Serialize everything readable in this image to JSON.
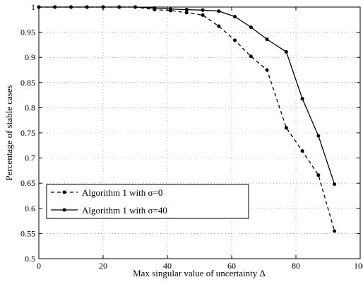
{
  "chart_data": {
    "type": "line",
    "xlabel": "Max singular value of uncertainty Δ",
    "ylabel": "Percentage of stable cases",
    "xlim": [
      0,
      100
    ],
    "ylim": [
      0.5,
      1.0
    ],
    "xticks": [
      "0",
      "20",
      "40",
      "60",
      "80",
      "100"
    ],
    "yticks": [
      "0.5",
      "0.55",
      "0.6",
      "0.65",
      "0.7",
      "0.75",
      "0.8",
      "0.85",
      "0.9",
      "0.95",
      "1"
    ],
    "grid": "dotted",
    "legend_position": "lower-left",
    "series": [
      {
        "name": "Algorithm 1 with σ=0",
        "style": "dashed",
        "marker": "dot",
        "x": [
          0,
          5,
          10,
          15,
          20,
          25,
          30,
          36,
          41,
          46,
          51,
          56,
          61,
          66,
          71,
          77,
          82,
          87,
          92
        ],
        "y": [
          1.0,
          1.0,
          1.0,
          1.0,
          1.0,
          1.0,
          1.0,
          0.995,
          0.993,
          0.989,
          0.984,
          0.962,
          0.934,
          0.902,
          0.875,
          0.76,
          0.714,
          0.666,
          0.555
        ]
      },
      {
        "name": "Algorithm 1 with σ=40",
        "style": "solid",
        "marker": "dot",
        "x": [
          0,
          5,
          10,
          15,
          20,
          25,
          30,
          36,
          41,
          46,
          51,
          56,
          61,
          66,
          71,
          77,
          82,
          87,
          92
        ],
        "y": [
          1.0,
          1.0,
          1.0,
          1.0,
          1.0,
          1.0,
          1.0,
          0.998,
          0.996,
          0.995,
          0.994,
          0.992,
          0.981,
          0.96,
          0.936,
          0.911,
          0.818,
          0.744,
          0.648
        ]
      }
    ]
  }
}
